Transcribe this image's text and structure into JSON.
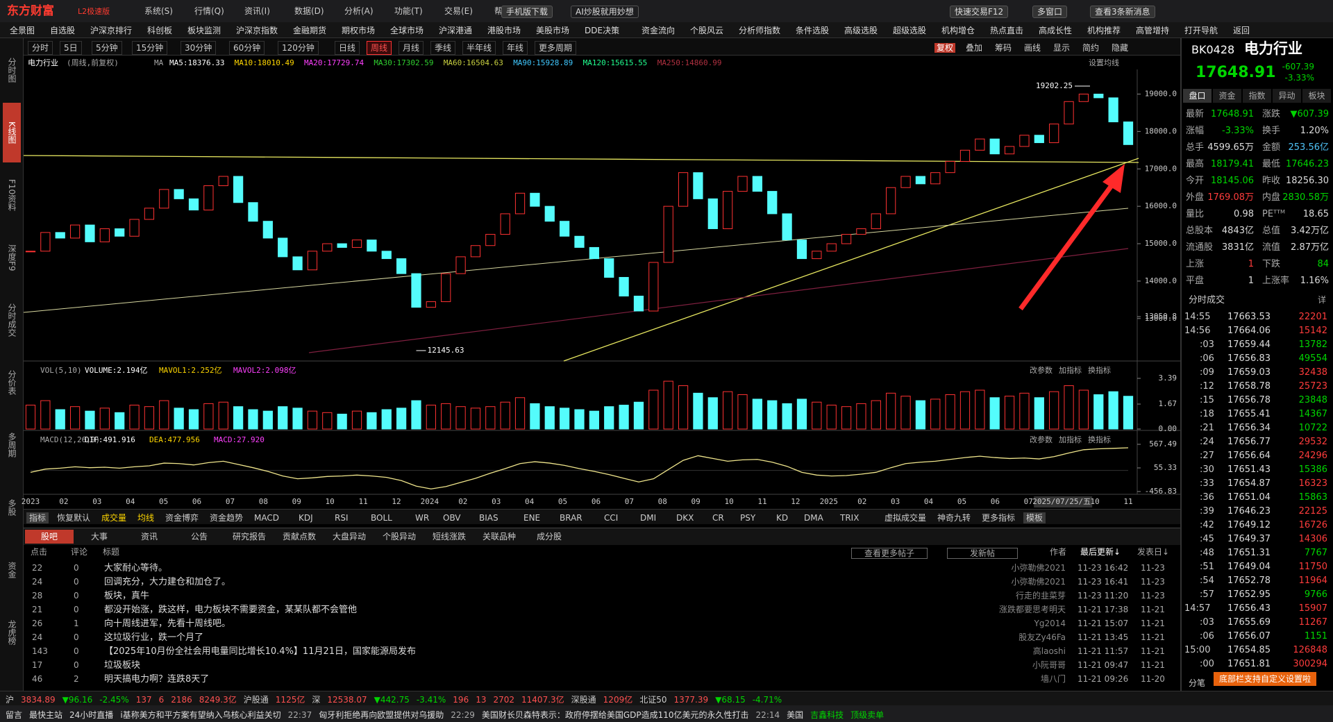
{
  "title_bar": {
    "logo": "东方财富",
    "edition": "L2极速版",
    "menu": [
      "系统(S)",
      "行情(Q)",
      "资讯(I)",
      "数据(D)",
      "分析(A)",
      "功能(T)",
      "交易(E)",
      "帮助(H)"
    ],
    "buttons": [
      "手机版下载",
      "AI炒股就用妙想",
      "快速交易F12",
      "多窗口",
      "查看3条新消息"
    ]
  },
  "nav": [
    "全景图",
    "自选股",
    "沪深京排行",
    "科创板",
    "板块监测",
    "沪深京指数",
    "金融期货",
    "期权市场",
    "全球市场",
    "沪深港通",
    "港股市场",
    "美股市场",
    "DDE决策",
    "资金流向",
    "个股风云",
    "分析师指数",
    "条件选股",
    "高级选股",
    "超级选股",
    "机构增仓",
    "热点直击",
    "高成长性",
    "机构推荐",
    "高管增持",
    "打开导航",
    "返回"
  ],
  "side_tabs": [
    "分时图",
    "K线图",
    "F10资料",
    "深度F9",
    "分时成交",
    "分价表",
    "多周期",
    "多股",
    "资金",
    "龙虎榜"
  ],
  "side_active": 1,
  "periods": {
    "items": [
      "分时",
      "5日",
      "5分钟",
      "15分钟",
      "30分钟",
      "60分钟",
      "120分钟",
      "日线",
      "周线",
      "月线",
      "季线",
      "半年线",
      "年线",
      "更多周期"
    ],
    "active": 8
  },
  "toolbar": [
    "复权",
    "叠加",
    "筹码",
    "画线",
    "显示",
    "简约",
    "隐藏"
  ],
  "chart_data": [
    {
      "type": "candlestick",
      "name": "电力行业",
      "params": "(周线,前复权)",
      "ma_label": "MA",
      "ma": [
        "MA5:18376.33",
        "MA10:18010.49",
        "MA20:17729.74",
        "MA30:17302.59",
        "MA60:16504.63",
        "MA90:15928.89",
        "MA120:15615.55",
        "MA250:14860.99"
      ],
      "ma_colors": [
        "#ffffff",
        "#ffd700",
        "#ff40ff",
        "#30d030",
        "#c8d040",
        "#40c8ff",
        "#20ff90",
        "#b03040"
      ],
      "setting": "设置均线",
      "ylim": [
        11864,
        19659
      ],
      "yticks": [
        {
          "value": 19000,
          "label": "19000.0"
        },
        {
          "value": 18000,
          "label": "18000.0"
        },
        {
          "value": 17000,
          "label": "17000.0"
        },
        {
          "value": 16000,
          "label": "16000.0"
        },
        {
          "value": 15000,
          "label": "15000.0"
        },
        {
          "value": 14000,
          "label": "14000.0"
        },
        {
          "value": 13050.8,
          "label": "13050.8"
        },
        {
          "value": 13000,
          "label": "13000.0"
        }
      ],
      "up_color": "#ff3232",
      "down_color": "#54fcfc",
      "closes": [
        14800,
        15300,
        15150,
        15500,
        15050,
        15400,
        15200,
        15650,
        15950,
        16450,
        16200,
        15900,
        16550,
        16800,
        16100,
        15600,
        15150,
        14650,
        14300,
        14800,
        15000,
        14900,
        15100,
        14800,
        14600,
        14200,
        13300,
        13450,
        14200,
        14650,
        14950,
        15250,
        15800,
        16350,
        16000,
        15600,
        15200,
        14900,
        14600,
        14100,
        13600,
        13200,
        14500,
        16000,
        16900,
        16200,
        15400,
        16400,
        16800,
        16400,
        15800,
        15100,
        14600,
        14800,
        15000,
        15250,
        15400,
        15800,
        16500,
        16800,
        16600,
        16900,
        17200,
        17500,
        17800,
        17400,
        17600,
        17900,
        17700,
        18200,
        18800,
        19000,
        18900,
        18256.3,
        17648.91
      ],
      "high_label": "19202.25",
      "low_label": "12145.63",
      "date_labels": [
        "2023",
        "02",
        "03",
        "04",
        "05",
        "06",
        "07",
        "08",
        "09",
        "10",
        "11",
        "12",
        "2024",
        "02",
        "03",
        "04",
        "05",
        "06",
        "07",
        "08",
        "09",
        "10",
        "11",
        "12",
        "2025",
        "02",
        "03",
        "04",
        "05",
        "06",
        "07",
        "2025/07/25/五",
        "10",
        "11"
      ]
    },
    {
      "type": "bar",
      "indicator": "VOL(5,10)",
      "legend": [
        "VOLUME:2.194亿",
        "MAVOL1:2.252亿",
        "MAVOL2:2.098亿"
      ],
      "legend_colors": [
        "#ffffff",
        "#ffd700",
        "#ff40ff"
      ],
      "buttons": [
        "改参数",
        "加指标",
        "换指标"
      ],
      "ylim": [
        0,
        3.39
      ],
      "yticks": [
        3.39,
        1.67,
        {
          "value": 0,
          "label": "0.00"
        }
      ],
      "color": "#54fcfc",
      "values": [
        1.6,
        1.9,
        1.3,
        1.5,
        1.2,
        1.4,
        1.1,
        1.6,
        1.5,
        1.9,
        1.4,
        1.3,
        1.7,
        1.8,
        1.5,
        1.3,
        1.2,
        1.5,
        1.4,
        1.2,
        1.1,
        1.0,
        1.2,
        1.1,
        1.3,
        1.4,
        1.9,
        1.6,
        1.7,
        1.5,
        1.4,
        1.5,
        1.8,
        2.1,
        1.7,
        1.5,
        1.4,
        1.3,
        1.2,
        1.5,
        1.6,
        1.8,
        2.6,
        3.2,
        2.9,
        2.4,
        2.1,
        2.5,
        2.3,
        2.0,
        1.9,
        1.7,
        2.0,
        1.8,
        1.6,
        1.5,
        1.7,
        1.9,
        2.4,
        2.2,
        1.9,
        2.0,
        2.3,
        2.5,
        2.6,
        2.1,
        2.2,
        2.4,
        2.1,
        2.5,
        2.9,
        2.6,
        2.3,
        2.5,
        2.194
      ]
    },
    {
      "type": "line",
      "indicator": "MACD(12,26,9)",
      "legend": [
        "DIF:491.916",
        "DEA:477.956",
        "MACD:27.920"
      ],
      "legend_colors": [
        "#ffffff",
        "#ffd700",
        "#ff40ff"
      ],
      "buttons": [
        "改参数",
        "加指标",
        "换指标"
      ],
      "ylim": [
        -456.83,
        567.49
      ],
      "yticks": [
        567.49,
        55.33,
        -456.83
      ],
      "color": "#f0e68c",
      "values": [
        -40,
        30,
        50,
        80,
        60,
        70,
        50,
        80,
        100,
        160,
        150,
        120,
        170,
        200,
        130,
        60,
        -20,
        -120,
        -180,
        -160,
        -130,
        -120,
        -100,
        -120,
        -150,
        -220,
        -340,
        -400,
        -350,
        -260,
        -170,
        -60,
        40,
        150,
        190,
        160,
        110,
        40,
        -20,
        -90,
        -170,
        -250,
        -180,
        20,
        220,
        320,
        260,
        200,
        230,
        240,
        180,
        90,
        -40,
        -100,
        -120,
        -110,
        -80,
        -40,
        60,
        150,
        180,
        200,
        240,
        280,
        310,
        280,
        260,
        270,
        250,
        300,
        380,
        450,
        470,
        480,
        491.916
      ]
    }
  ],
  "indicator_tabs": [
    "指标",
    "恢复默认",
    "成交量",
    "均线",
    "资金博弈",
    "资金趋势",
    "MACD",
    "KDJ",
    "RSI",
    "BOLL",
    "WR",
    "OBV",
    "BIAS",
    "ENE",
    "BRAR",
    "CCI",
    "DMI",
    "DKX",
    "CR",
    "PSY",
    "KD",
    "DMA",
    "TRIX",
    "虚拟成交量",
    "神奇九转",
    "更多指标",
    "模板"
  ],
  "forum": {
    "tabs": [
      "股吧",
      "大事",
      "资讯",
      "公告",
      "研究报告",
      "贡献点数",
      "大盘异动",
      "个股异动",
      "短线涨跌",
      "关联品种",
      "成分股"
    ],
    "header": [
      "点击",
      "评论",
      "标题",
      "查看更多帖子",
      "发新帖",
      "作者",
      "最后更新↓",
      "发表日↓"
    ],
    "posts": [
      [
        "22",
        "0",
        "大家耐心等待。",
        "小弥勒佛2021",
        "11-23 16:42",
        "11-23"
      ],
      [
        "24",
        "0",
        "回调充分，大力建仓和加仓了。",
        "小弥勒佛2021",
        "11-23 16:41",
        "11-23"
      ],
      [
        "28",
        "0",
        "板块，真牛",
        "行走的韭菜芽",
        "11-23 11:20",
        "11-23"
      ],
      [
        "21",
        "0",
        "都没开始涨，跌这样，电力板块不需要资金，某某队都不会管他",
        "涨跌都要思考明天",
        "11-21 17:38",
        "11-21"
      ],
      [
        "26",
        "1",
        "向十周线进军，先看十周线吧。",
        "Yg2014",
        "11-21 15:07",
        "11-21"
      ],
      [
        "24",
        "0",
        "这垃圾行业，跌一个月了",
        "股友Zy46Fa",
        "11-21 13:45",
        "11-21"
      ],
      [
        "143",
        "0",
        "【2025年10月份全社会用电量同比增长10.4%】11月21日，国家能源局发布",
        "高laoshi",
        "11-21 11:57",
        "11-21"
      ],
      [
        "17",
        "0",
        "垃圾板块",
        "小阮哥哥",
        "11-21 09:47",
        "11-21"
      ],
      [
        "46",
        "2",
        "明天搞电力啊？连跌8天了",
        "墙八门",
        "11-21 09:26",
        "11-20"
      ]
    ]
  },
  "quote": {
    "code": "BK0428",
    "name": "电力行业",
    "price": "17648.91",
    "change": "-607.39",
    "pct": "-3.33%",
    "tabs": [
      "盘口",
      "资金",
      "指数",
      "异动",
      "板块"
    ],
    "stats": [
      {
        "label": "最新",
        "value": "17648.91",
        "color": "#00d600"
      },
      {
        "label": "涨跌",
        "value": "▼607.39",
        "color": "#00d600"
      },
      {
        "label": "涨幅",
        "value": "-3.33%",
        "color": "#00d600"
      },
      {
        "label": "换手",
        "value": "1.20%",
        "color": "#dddddd"
      },
      {
        "label": "总手",
        "value": "4599.65万",
        "color": "#dddddd"
      },
      {
        "label": "金额",
        "value": "253.56亿",
        "color": "#4fc3f7"
      },
      {
        "label": "最高",
        "value": "18179.41",
        "color": "#00d600"
      },
      {
        "label": "最低",
        "value": "17646.23",
        "color": "#00d600"
      },
      {
        "label": "今开",
        "value": "18145.06",
        "color": "#00d600"
      },
      {
        "label": "昨收",
        "value": "18256.30",
        "color": "#dddddd"
      },
      {
        "label": "外盘",
        "value": "1769.08万",
        "color": "#ff3c3c"
      },
      {
        "label": "内盘",
        "value": "2830.58万",
        "color": "#00d600"
      },
      {
        "label": "量比",
        "value": "0.98",
        "color": "#dddddd"
      },
      {
        "label": "PEᵀᵀᴹ",
        "value": "18.65",
        "color": "#dddddd"
      },
      {
        "label": "总股本",
        "value": "4843亿",
        "color": "#dddddd"
      },
      {
        "label": "总值",
        "value": "3.42万亿",
        "color": "#dddddd"
      },
      {
        "label": "流通股",
        "value": "3831亿",
        "color": "#dddddd"
      },
      {
        "label": "流值",
        "value": "2.87万亿",
        "color": "#dddddd"
      },
      {
        "label": "上涨",
        "value": "1",
        "color": "#ff3c3c"
      },
      {
        "label": "下跌",
        "value": "84",
        "color": "#00d600"
      },
      {
        "label": "平盘",
        "value": "1",
        "color": "#dddddd"
      },
      {
        "label": "上涨率",
        "value": "1.16%",
        "color": "#dddddd"
      }
    ],
    "ticks_title": "分时成交",
    "ticks_detail": "详",
    "ticks": [
      [
        "14:55",
        "17663.53",
        "22201",
        "#ff3c3c"
      ],
      [
        "14:56",
        "17664.06",
        "15142",
        "#ff3c3c"
      ],
      [
        ":03",
        "17659.44",
        "13782",
        "#00d600"
      ],
      [
        ":06",
        "17656.83",
        "49554",
        "#00d600"
      ],
      [
        ":09",
        "17659.03",
        "32438",
        "#ff3c3c"
      ],
      [
        ":12",
        "17658.78",
        "25723",
        "#ff3c3c"
      ],
      [
        ":15",
        "17656.78",
        "23848",
        "#00d600"
      ],
      [
        ":18",
        "17655.41",
        "14367",
        "#00d600"
      ],
      [
        ":21",
        "17656.34",
        "10722",
        "#00d600"
      ],
      [
        ":24",
        "17656.77",
        "29532",
        "#ff3c3c"
      ],
      [
        ":27",
        "17656.64",
        "24296",
        "#ff3c3c"
      ],
      [
        ":30",
        "17651.43",
        "15386",
        "#00d600"
      ],
      [
        ":33",
        "17654.87",
        "16323",
        "#ff3c3c"
      ],
      [
        ":36",
        "17651.04",
        "15863",
        "#00d600"
      ],
      [
        ":39",
        "17646.23",
        "22125",
        "#ff3c3c"
      ],
      [
        ":42",
        "17649.12",
        "16726",
        "#ff3c3c"
      ],
      [
        ":45",
        "17649.37",
        "14306",
        "#ff3c3c"
      ],
      [
        ":48",
        "17651.31",
        "7767",
        "#00d600"
      ],
      [
        ":51",
        "17649.04",
        "11750",
        "#ff3c3c"
      ],
      [
        ":54",
        "17652.78",
        "11964",
        "#ff3c3c"
      ],
      [
        ":57",
        "17652.95",
        "9766",
        "#00d600"
      ],
      [
        "14:57",
        "17656.43",
        "15907",
        "#ff3c3c"
      ],
      [
        ":03",
        "17655.69",
        "11267",
        "#ff3c3c"
      ],
      [
        ":06",
        "17656.07",
        "1151",
        "#00d600"
      ],
      [
        "15:00",
        "17654.85",
        "126848",
        "#ff3c3c"
      ],
      [
        ":00",
        "17651.81",
        "300294",
        "#ff3c3c"
      ]
    ],
    "popup": "底部栏支持自定义设置啦",
    "fenbi": "分笔"
  },
  "status": [
    "沪",
    "3834.89",
    "▼96.16",
    "-2.45%",
    "137",
    "6",
    "2186",
    "8249.3亿",
    "沪股通",
    "1125亿",
    "深",
    "12538.07",
    "▼442.75",
    "-3.41%",
    "196",
    "13",
    "2702",
    "11407.3亿",
    "深股通",
    "1209亿",
    "北证50",
    "1377.39",
    "▼68.15",
    "-4.71%"
  ],
  "ticker": [
    "留言",
    "最快主站",
    "24小时直播",
    "i基称美方和平方案有望纳入乌核心利益关切",
    "22:37",
    "匈牙利拒绝再向欧盟提供对乌援助",
    "22:29",
    "美国财长贝森特表示：政府停摆给美国GDP造成110亿美元的永久性打击",
    "22:14",
    "美国",
    "吉鑫科技",
    "顶级卖单"
  ]
}
